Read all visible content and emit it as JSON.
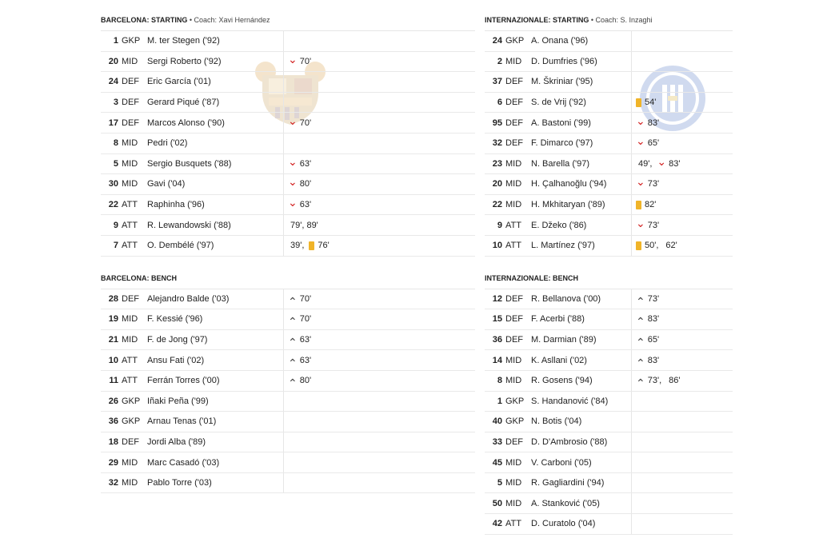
{
  "home": {
    "starting_title": "BARCELONA: STARTING",
    "coach": "• Coach: Xavi Hernández",
    "bench_title": "BARCELONA: BENCH",
    "starting": [
      {
        "num": "1",
        "pos": "GKP",
        "name": "M. ter Stegen ('92)",
        "events": []
      },
      {
        "num": "20",
        "pos": "MID",
        "name": "Sergi Roberto ('92)",
        "events": [
          {
            "type": "off",
            "text": "70'"
          }
        ]
      },
      {
        "num": "24",
        "pos": "DEF",
        "name": "Eric García ('01)",
        "events": []
      },
      {
        "num": "3",
        "pos": "DEF",
        "name": "Gerard Piqué ('87)",
        "events": []
      },
      {
        "num": "17",
        "pos": "DEF",
        "name": "Marcos Alonso ('90)",
        "events": [
          {
            "type": "off",
            "text": "70'"
          }
        ]
      },
      {
        "num": "8",
        "pos": "MID",
        "name": "Pedri ('02)",
        "events": []
      },
      {
        "num": "5",
        "pos": "MID",
        "name": "Sergio Busquets ('88)",
        "events": [
          {
            "type": "off",
            "text": "63'"
          }
        ]
      },
      {
        "num": "30",
        "pos": "MID",
        "name": "Gavi ('04)",
        "events": [
          {
            "type": "off",
            "text": "80'"
          }
        ]
      },
      {
        "num": "22",
        "pos": "ATT",
        "name": "Raphinha ('96)",
        "events": [
          {
            "type": "off",
            "text": "63'"
          }
        ]
      },
      {
        "num": "9",
        "pos": "ATT",
        "name": "R. Lewandowski ('88)",
        "events": [
          {
            "type": "goal",
            "text": "79', 89'"
          }
        ]
      },
      {
        "num": "7",
        "pos": "ATT",
        "name": "O. Dembélé ('97)",
        "events": [
          {
            "type": "goal",
            "text": "39',"
          },
          {
            "type": "card",
            "text": "76'"
          }
        ]
      }
    ],
    "bench": [
      {
        "num": "28",
        "pos": "DEF",
        "name": "Alejandro Balde ('03)",
        "events": [
          {
            "type": "on",
            "text": "70'"
          }
        ]
      },
      {
        "num": "19",
        "pos": "MID",
        "name": "F. Kessié ('96)",
        "events": [
          {
            "type": "on",
            "text": "70'"
          }
        ]
      },
      {
        "num": "21",
        "pos": "MID",
        "name": "F. de Jong ('97)",
        "events": [
          {
            "type": "on",
            "text": "63'"
          }
        ]
      },
      {
        "num": "10",
        "pos": "ATT",
        "name": "Ansu Fati ('02)",
        "events": [
          {
            "type": "on",
            "text": "63'"
          }
        ]
      },
      {
        "num": "11",
        "pos": "ATT",
        "name": "Ferrán Torres ('00)",
        "events": [
          {
            "type": "on",
            "text": "80'"
          }
        ]
      },
      {
        "num": "26",
        "pos": "GKP",
        "name": "Iñaki Peña ('99)",
        "events": []
      },
      {
        "num": "36",
        "pos": "GKP",
        "name": "Arnau Tenas ('01)",
        "events": []
      },
      {
        "num": "18",
        "pos": "DEF",
        "name": "Jordi Alba ('89)",
        "events": []
      },
      {
        "num": "29",
        "pos": "MID",
        "name": "Marc Casadó ('03)",
        "events": []
      },
      {
        "num": "32",
        "pos": "MID",
        "name": "Pablo Torre ('03)",
        "events": []
      }
    ]
  },
  "away": {
    "starting_title": "INTERNAZIONALE: STARTING",
    "coach": "• Coach: S. Inzaghi",
    "bench_title": "INTERNAZIONALE: BENCH",
    "starting": [
      {
        "num": "24",
        "pos": "GKP",
        "name": "A. Onana ('96)",
        "events": []
      },
      {
        "num": "2",
        "pos": "MID",
        "name": "D. Dumfries ('96)",
        "events": []
      },
      {
        "num": "37",
        "pos": "DEF",
        "name": "M. Škriniar ('95)",
        "events": []
      },
      {
        "num": "6",
        "pos": "DEF",
        "name": "S. de Vrij ('92)",
        "events": [
          {
            "type": "card",
            "text": "54'"
          }
        ]
      },
      {
        "num": "95",
        "pos": "DEF",
        "name": "A. Bastoni ('99)",
        "events": [
          {
            "type": "off",
            "text": "83'"
          }
        ]
      },
      {
        "num": "32",
        "pos": "DEF",
        "name": "F. Dimarco ('97)",
        "events": [
          {
            "type": "off",
            "text": "65'"
          }
        ]
      },
      {
        "num": "23",
        "pos": "MID",
        "name": "N. Barella ('97)",
        "events": [
          {
            "type": "goal",
            "text": "49',"
          },
          {
            "type": "off",
            "text": "83'"
          }
        ]
      },
      {
        "num": "20",
        "pos": "MID",
        "name": "H. Çalhanoğlu ('94)",
        "events": [
          {
            "type": "off",
            "text": "73'"
          }
        ]
      },
      {
        "num": "22",
        "pos": "MID",
        "name": "H. Mkhitaryan ('89)",
        "events": [
          {
            "type": "card",
            "text": "82'"
          }
        ]
      },
      {
        "num": "9",
        "pos": "ATT",
        "name": "E. Džeko ('86)",
        "events": [
          {
            "type": "off",
            "text": "73'"
          }
        ]
      },
      {
        "num": "10",
        "pos": "ATT",
        "name": "L. Martínez ('97)",
        "events": [
          {
            "type": "card",
            "text": "50',"
          },
          {
            "type": "goal",
            "text": "62'"
          }
        ]
      }
    ],
    "bench": [
      {
        "num": "12",
        "pos": "DEF",
        "name": "R. Bellanova ('00)",
        "events": [
          {
            "type": "on",
            "text": "73'"
          }
        ]
      },
      {
        "num": "15",
        "pos": "DEF",
        "name": "F. Acerbi ('88)",
        "events": [
          {
            "type": "on",
            "text": "83'"
          }
        ]
      },
      {
        "num": "36",
        "pos": "DEF",
        "name": "M. Darmian ('89)",
        "events": [
          {
            "type": "on",
            "text": "65'"
          }
        ]
      },
      {
        "num": "14",
        "pos": "MID",
        "name": "K. Asllani ('02)",
        "events": [
          {
            "type": "on",
            "text": "83'"
          }
        ]
      },
      {
        "num": "8",
        "pos": "MID",
        "name": "R. Gosens ('94)",
        "events": [
          {
            "type": "on",
            "text": "73',"
          },
          {
            "type": "goal",
            "text": "86'"
          }
        ]
      },
      {
        "num": "1",
        "pos": "GKP",
        "name": "S. Handanović ('84)",
        "events": []
      },
      {
        "num": "40",
        "pos": "GKP",
        "name": "N. Botis ('04)",
        "events": []
      },
      {
        "num": "33",
        "pos": "DEF",
        "name": "D. D'Ambrosio ('88)",
        "events": []
      },
      {
        "num": "45",
        "pos": "MID",
        "name": "V. Carboni ('05)",
        "events": []
      },
      {
        "num": "5",
        "pos": "MID",
        "name": "R. Gagliardini ('94)",
        "events": []
      },
      {
        "num": "50",
        "pos": "MID",
        "name": "A. Stanković ('05)",
        "events": []
      },
      {
        "num": "42",
        "pos": "ATT",
        "name": "D. Curatolo ('04)",
        "events": []
      }
    ]
  },
  "icons": {
    "off": "chevron-down-icon",
    "on": "chevron-up-icon",
    "goal": "ball-icon",
    "card": "yellow-card-icon"
  },
  "colors": {
    "sub_off": "#d21e1e",
    "card": "#f0b429"
  }
}
